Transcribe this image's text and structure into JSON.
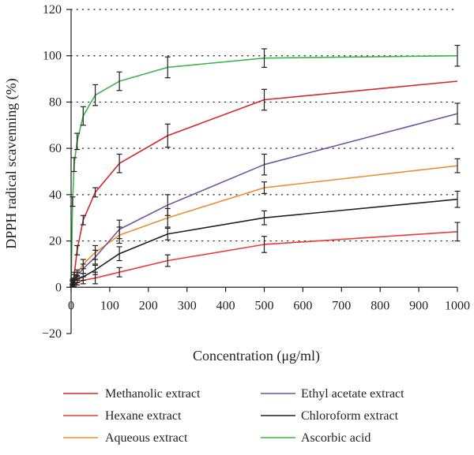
{
  "chart_data": {
    "type": "line",
    "title": "",
    "xlabel": "Concentration (μg/ml)",
    "ylabel": "DPPH radical scavenning (%)",
    "xlim": [
      0,
      1000
    ],
    "ylim": [
      -20,
      120
    ],
    "xticks": [
      "0",
      "100",
      "200",
      "300",
      "400",
      "500",
      "600",
      "700",
      "800",
      "900",
      "1000"
    ],
    "yticks": [
      "−20",
      "0",
      "20",
      "40",
      "60",
      "80",
      "100",
      "120"
    ],
    "grid": "dotted horizontal",
    "legend_position": "bottom",
    "series": [
      {
        "name": "Methanolic extract",
        "color": "#d7262e",
        "x": [
          0,
          3.9,
          7.8,
          15.6,
          31.25,
          62.5,
          125,
          250,
          500,
          1000
        ],
        "y": [
          0,
          2,
          5,
          16,
          29,
          41,
          53.5,
          65.5,
          81,
          89
        ],
        "error": [
          0,
          1,
          1.5,
          2,
          2,
          2,
          4,
          5,
          4.5,
          0
        ]
      },
      {
        "name": "Hexane extract",
        "color": "#ee3a36",
        "x": [
          0,
          3.9,
          7.8,
          15.6,
          31.25,
          62.5,
          125,
          250,
          500,
          1000
        ],
        "y": [
          0,
          0.8,
          1.2,
          2,
          3,
          4,
          6.5,
          11.5,
          18.5,
          24
        ],
        "error": [
          0,
          0.5,
          0.8,
          1,
          1.5,
          2.5,
          2,
          2.5,
          3.5,
          4
        ]
      },
      {
        "name": "Aqueous extract",
        "color": "#ec8e33",
        "x": [
          0,
          3.9,
          7.8,
          15.6,
          31.25,
          62.5,
          125,
          250,
          500,
          1000
        ],
        "y": [
          0,
          2.5,
          4.5,
          6,
          10,
          15,
          22.5,
          30,
          43,
          52.5
        ],
        "error": [
          0,
          1,
          1,
          1.5,
          2,
          3,
          3.5,
          4,
          2.5,
          3
        ]
      },
      {
        "name": "Ethyl acetate extract",
        "color": "#7254a3",
        "x": [
          0,
          3.9,
          7.8,
          15.6,
          31.25,
          62.5,
          125,
          250,
          500,
          1000
        ],
        "y": [
          0,
          2,
          3,
          5,
          8,
          13,
          25,
          35.5,
          53,
          75
        ],
        "error": [
          0,
          1,
          1,
          1.5,
          2,
          3,
          4,
          4.5,
          4.5,
          4.5
        ]
      },
      {
        "name": "Chloroform extract",
        "color": "#231f20",
        "x": [
          0,
          3.9,
          7.8,
          15.6,
          31.25,
          62.5,
          125,
          250,
          500,
          1000
        ],
        "y": [
          0,
          1.5,
          2.5,
          3.5,
          4.5,
          7.5,
          14.5,
          23,
          30,
          38
        ],
        "error": [
          0,
          1,
          1,
          1.5,
          1.5,
          2,
          3,
          2.5,
          3,
          3.5
        ]
      },
      {
        "name": "Ascorbic acid",
        "color": "#3ab54a",
        "x": [
          0,
          3.9,
          7.8,
          15.6,
          31.25,
          62.5,
          125,
          250,
          500,
          1000
        ],
        "y": [
          0,
          37,
          53,
          63,
          74,
          83,
          89,
          95,
          99,
          100
        ],
        "error": [
          0,
          2,
          3,
          3.5,
          4,
          4.5,
          4,
          4.5,
          4,
          4.5
        ]
      }
    ]
  }
}
